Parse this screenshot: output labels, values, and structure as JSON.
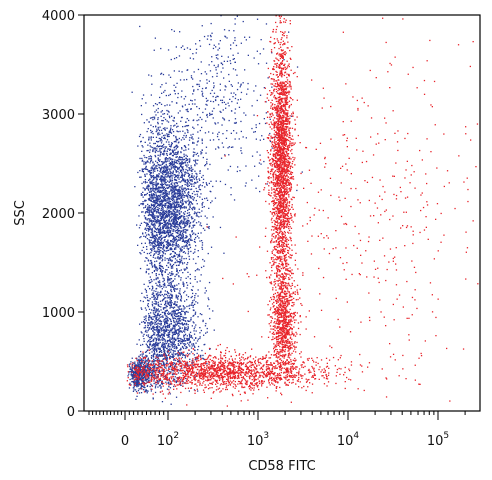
{
  "chart_data": {
    "type": "scatter",
    "title": "",
    "xlabel": "CD58 FITC",
    "ylabel": "SSC",
    "x_scale": "biexponential (log above 10^2)",
    "ylim": [
      0,
      4000
    ],
    "y_ticks": [
      "0",
      "1000",
      "2000",
      "3000",
      "4000"
    ],
    "x_ticks": [
      {
        "label": "0",
        "value": 0
      },
      {
        "base": "10",
        "exp": "2",
        "value": 100
      },
      {
        "base": "10",
        "exp": "3",
        "value": 1000
      },
      {
        "base": "10",
        "exp": "4",
        "value": 10000
      },
      {
        "base": "10",
        "exp": "5",
        "value": 100000
      }
    ],
    "grid": false,
    "legend": "none",
    "series": [
      {
        "color": "#2a3c9a",
        "clusters": [
          {
            "x_center": 100,
            "y_center": 2100,
            "x_spread_decades": 0.18,
            "y_spread": 420,
            "weight": 0.55
          },
          {
            "x_center": 100,
            "y_center": 800,
            "x_spread_decades": 0.18,
            "y_spread": 250,
            "weight": 0.25
          },
          {
            "x_center": 40,
            "y_center": 380,
            "x_spread_decades": 0.25,
            "y_spread": 80,
            "weight": 0.12
          },
          {
            "x_center": 400,
            "y_center": 3200,
            "x_spread_decades": 0.35,
            "y_spread": 500,
            "weight": 0.08
          }
        ]
      },
      {
        "color": "#e8232a",
        "clusters": [
          {
            "x_center": 1800,
            "y_center": 2500,
            "x_spread_decades": 0.06,
            "y_spread": 650,
            "weight": 0.45
          },
          {
            "x_center": 1900,
            "y_center": 900,
            "x_spread_decades": 0.07,
            "y_spread": 250,
            "weight": 0.15
          },
          {
            "x_center": 400,
            "y_center": 400,
            "x_spread_decades": 0.55,
            "y_spread": 90,
            "weight": 0.32
          },
          {
            "x_center": 20000,
            "y_center": 2000,
            "x_spread_decades": 0.7,
            "y_spread": 900,
            "weight": 0.08
          }
        ]
      }
    ]
  }
}
